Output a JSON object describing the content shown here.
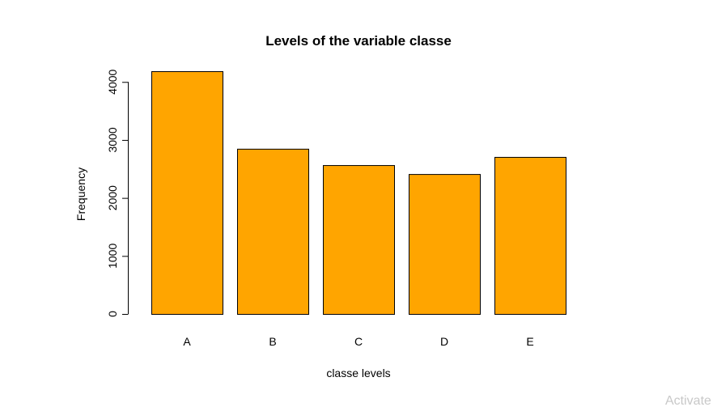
{
  "chart_data": {
    "type": "bar",
    "title": "Levels of the variable classe",
    "xlabel": "classe levels",
    "ylabel": "Frequency",
    "categories": [
      "A",
      "B",
      "C",
      "D",
      "E"
    ],
    "values": [
      4185,
      2848,
      2566,
      2412,
      2707
    ],
    "ylim": [
      0,
      4185
    ],
    "yticks": [
      0,
      1000,
      2000,
      3000,
      4000
    ],
    "bar_color": "#FFA500",
    "grid": false,
    "legend": "none"
  },
  "overlay": {
    "watermark_text": "Activate"
  }
}
